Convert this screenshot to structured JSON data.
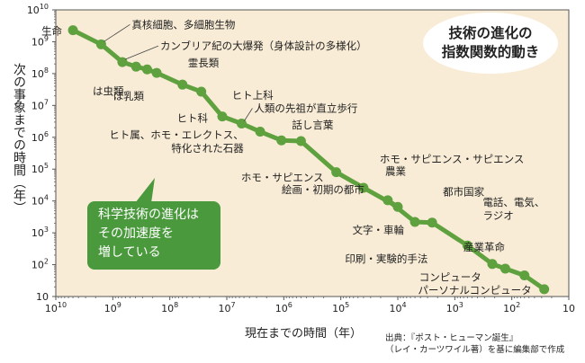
{
  "title": [
    "技術の進化の",
    "指数関数的動き"
  ],
  "y_axis_title": "次の事象までの時間（年）",
  "x_axis_title": "現在までの時間（年）",
  "callout": [
    "科学技術の進化は",
    "その加速度を",
    "増している"
  ],
  "source": [
    "出典：『ポスト・ヒューマン誕生』",
    "（レイ・カーツワイル著）を基に編集部で作成"
  ],
  "colors": {
    "plot_bg": "#f9ecd6",
    "line": "#5ea13e",
    "callout": "#4a9a3d",
    "grid": "#e7d7bd"
  },
  "chart_data": {
    "type": "line",
    "x_scale": "log-reversed",
    "y_scale": "log",
    "x_range": [
      10000000000.0,
      10
    ],
    "y_range": [
      10,
      10000000000.0
    ],
    "x_ticks": [
      {
        "v": 10000000000.0,
        "base": "10",
        "exp": "10"
      },
      {
        "v": 1000000000.0,
        "base": "10",
        "exp": "9"
      },
      {
        "v": 100000000.0,
        "base": "10",
        "exp": "8"
      },
      {
        "v": 10000000.0,
        "base": "10",
        "exp": "7"
      },
      {
        "v": 1000000.0,
        "base": "10",
        "exp": "6"
      },
      {
        "v": 100000.0,
        "base": "10",
        "exp": "5"
      },
      {
        "v": 10000.0,
        "base": "10",
        "exp": "4"
      },
      {
        "v": 1000.0,
        "base": "10",
        "exp": "3"
      },
      {
        "v": 100.0,
        "base": "10",
        "exp": "2"
      },
      {
        "v": 10,
        "base": "10",
        "exp": ""
      }
    ],
    "y_ticks": [
      {
        "v": 10000000000.0,
        "base": "10",
        "exp": "10"
      },
      {
        "v": 1000000000.0,
        "base": "10",
        "exp": "9"
      },
      {
        "v": 100000000.0,
        "base": "10",
        "exp": "8"
      },
      {
        "v": 10000000.0,
        "base": "10",
        "exp": "7"
      },
      {
        "v": 1000000.0,
        "base": "10",
        "exp": "6"
      },
      {
        "v": 100000.0,
        "base": "10",
        "exp": "5"
      },
      {
        "v": 10000.0,
        "base": "10",
        "exp": "4"
      },
      {
        "v": 1000.0,
        "base": "10",
        "exp": "3"
      },
      {
        "v": 100.0,
        "base": "10",
        "exp": "2"
      },
      {
        "v": 10,
        "base": "10",
        "exp": ""
      }
    ],
    "points": [
      {
        "x": 5000000000.0,
        "y": 2300000000.0,
        "label": "生命"
      },
      {
        "x": 1600000000.0,
        "y": 830000000.0,
        "label": "真核細胞、多細胞生物"
      },
      {
        "x": 680000000.0,
        "y": 230000000.0,
        "label": "カンブリア紀の大爆発（身体設計の多様化）"
      },
      {
        "x": 390000000.0,
        "y": 165000000.0,
        "label": ""
      },
      {
        "x": 250000000.0,
        "y": 135000000.0,
        "label": "は虫類"
      },
      {
        "x": 170000000.0,
        "y": 105000000.0,
        "label": "ほ乳類"
      },
      {
        "x": 60000000.0,
        "y": 45000000.0,
        "label": "霊長類"
      },
      {
        "x": 28000000.0,
        "y": 27000000.0,
        "label": "ヒト上科"
      },
      {
        "x": 12000000.0,
        "y": 4500000.0,
        "label": "ヒト科"
      },
      {
        "x": 5500000.0,
        "y": 2700000.0,
        "label": "人類の先祖が直立歩行"
      },
      {
        "x": 2600000.0,
        "y": 1500000.0,
        "label": ""
      },
      {
        "x": 1100000.0,
        "y": 800000.0,
        "label": "ヒト属、ホモ・エレクトス、特化された石器"
      },
      {
        "x": 500000.0,
        "y": 760000.0,
        "label": "話し言葉"
      },
      {
        "x": 120000.0,
        "y": 80000.0,
        "label": "ホモ・サピエンス"
      },
      {
        "x": 40000.0,
        "y": 26000.0,
        "label": "ホモ・サピエンス・サピエンス"
      },
      {
        "x": 10000.0,
        "y": 6500.0,
        "label": "農業"
      },
      {
        "x": 15000.0,
        "y": 10500.0,
        "label": "絵画・初期の都市"
      },
      {
        "x": 5000.0,
        "y": 2200.0,
        "label": "文字・車輪"
      },
      {
        "x": 2500.0,
        "y": 2100.0,
        "label": "都市国家"
      },
      {
        "x": 600.0,
        "y": 400.0,
        "label": "印刷・実験的手法"
      },
      {
        "x": 220.0,
        "y": 105.0,
        "label": "産業革命"
      },
      {
        "x": 130.0,
        "y": 75.0,
        "label": "電話、電気、ラジオ"
      },
      {
        "x": 60.0,
        "y": 46.0,
        "label": "コンピュータ"
      },
      {
        "x": 27.0,
        "y": 17.0,
        "label": "パーソナルコンピュータ"
      }
    ]
  }
}
